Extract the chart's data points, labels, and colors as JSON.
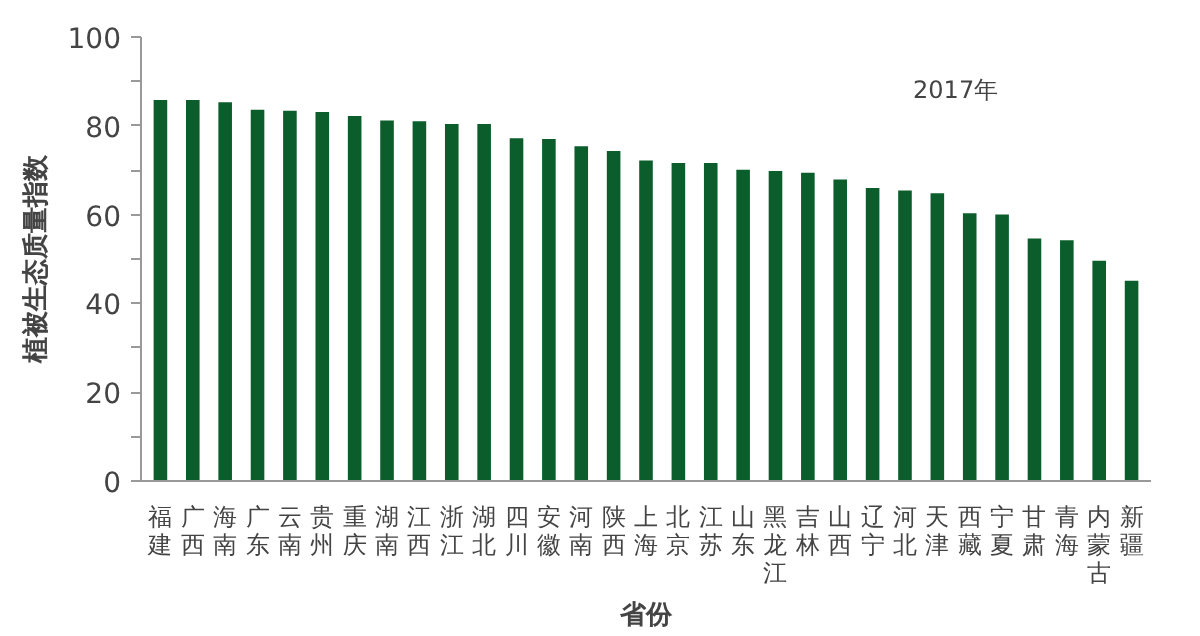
{
  "chart_data": {
    "type": "bar",
    "xlabel": "省份",
    "ylabel": "植被生态质量指数",
    "annotations": [
      "2017年"
    ],
    "categories": [
      "福建",
      "广西",
      "海南",
      "广东",
      "云南",
      "贵州",
      "重庆",
      "湖南",
      "江西",
      "浙江",
      "湖北",
      "四川",
      "安徽",
      "河南",
      "陕西",
      "上海",
      "北京",
      "江苏",
      "山东",
      "黑龙江",
      "吉林",
      "山西",
      "辽宁",
      "河北",
      "天津",
      "西藏",
      "宁夏",
      "甘肃",
      "青海",
      "内蒙古",
      "新疆"
    ],
    "values": [
      85.8,
      85.8,
      85.3,
      83.6,
      83.4,
      83.1,
      82.2,
      81.2,
      81.0,
      80.4,
      80.4,
      77.2,
      77.0,
      75.4,
      74.3,
      72.2,
      71.6,
      71.6,
      70.1,
      69.8,
      69.4,
      67.9,
      66.0,
      65.4,
      64.8,
      60.3,
      60.0,
      54.6,
      54.2,
      49.6,
      45.1
    ],
    "color": "#0b5e2b",
    "ylim": [
      0,
      100
    ],
    "yticks": [
      0,
      {
        "value": 10,
        "label": null
      },
      20,
      {
        "value": 30,
        "label": null
      },
      40,
      {
        "value": 50,
        "label": null
      },
      60,
      {
        "value": 70,
        "label": null
      },
      80,
      {
        "value": 90,
        "label": null
      },
      100
    ],
    "grid": false
  }
}
